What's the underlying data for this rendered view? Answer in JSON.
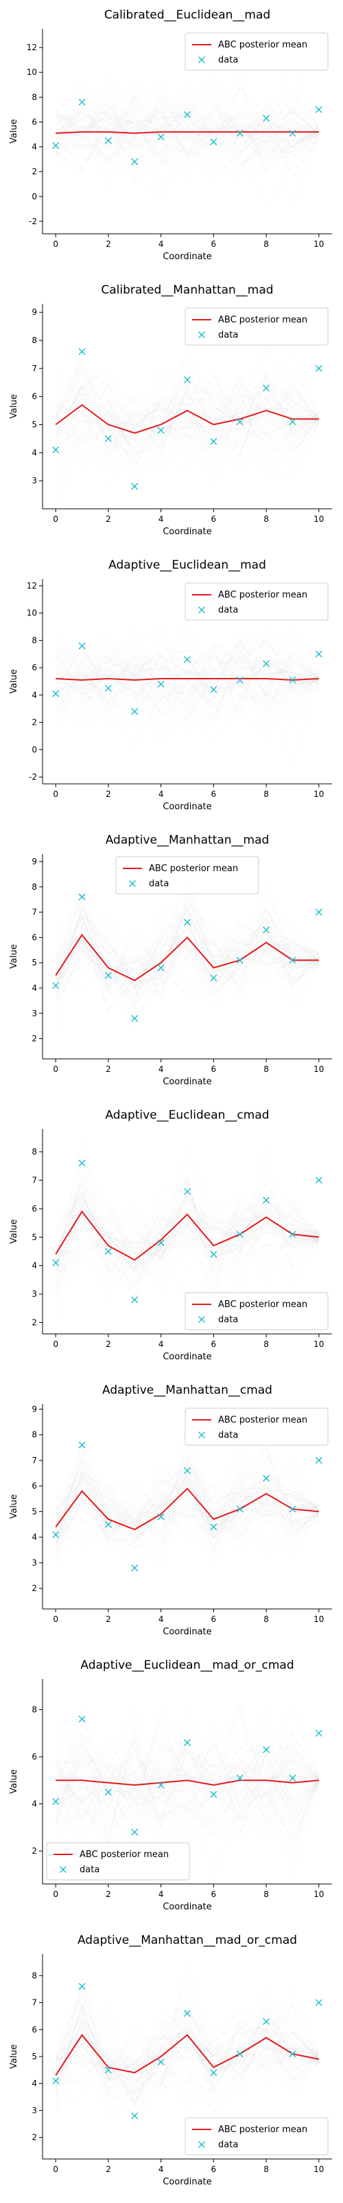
{
  "chart_data": [
    {
      "type": "line",
      "title": "Calibrated__Euclidean__mad",
      "xlabel": "Coordinate",
      "ylabel": "Value",
      "x": [
        0,
        1,
        2,
        3,
        4,
        5,
        6,
        7,
        8,
        9,
        10
      ],
      "xticks": [
        0,
        2,
        4,
        6,
        8,
        10
      ],
      "xlim": [
        -0.5,
        10.5
      ],
      "ylim": [
        -3,
        13.5
      ],
      "yticks": [
        -2,
        0,
        2,
        4,
        6,
        8,
        10,
        12
      ],
      "legend": "top-right",
      "colors": {
        "mean": "#e41a1c",
        "data": "#17becf",
        "samples": "#808080"
      },
      "series": [
        {
          "name": "ABC posterior mean",
          "values": [
            5.1,
            5.2,
            5.2,
            5.1,
            5.2,
            5.2,
            5.2,
            5.2,
            5.2,
            5.2,
            5.2
          ]
        },
        {
          "name": "data",
          "marker": "x",
          "values": [
            4.1,
            7.6,
            4.5,
            2.8,
            4.8,
            6.6,
            4.4,
            5.1,
            6.3,
            5.1,
            7.0
          ]
        }
      ],
      "samples_band": [
        2.2,
        2.2,
        2.2,
        2.2,
        2.2,
        2.2,
        2.2,
        2.2,
        2.2,
        2.2,
        0.4
      ]
    },
    {
      "type": "line",
      "title": "Calibrated__Manhattan__mad",
      "xlabel": "Coordinate",
      "ylabel": "Value",
      "x": [
        0,
        1,
        2,
        3,
        4,
        5,
        6,
        7,
        8,
        9,
        10
      ],
      "xticks": [
        0,
        2,
        4,
        6,
        8,
        10
      ],
      "xlim": [
        -0.5,
        10.5
      ],
      "ylim": [
        2.0,
        9.3
      ],
      "yticks": [
        3,
        4,
        5,
        6,
        7,
        8,
        9
      ],
      "legend": "top-right",
      "colors": {
        "mean": "#e41a1c",
        "data": "#17becf",
        "samples": "#808080"
      },
      "series": [
        {
          "name": "ABC posterior mean",
          "values": [
            5.0,
            5.7,
            5.0,
            4.7,
            5.0,
            5.5,
            5.0,
            5.2,
            5.5,
            5.2,
            5.2
          ]
        },
        {
          "name": "data",
          "marker": "x",
          "values": [
            4.1,
            7.6,
            4.5,
            2.8,
            4.8,
            6.6,
            4.4,
            5.1,
            6.3,
            5.1,
            7.0
          ]
        }
      ],
      "samples_band": [
        1.0,
        1.3,
        1.0,
        1.0,
        1.0,
        1.2,
        1.0,
        1.0,
        1.2,
        1.0,
        0.2
      ]
    },
    {
      "type": "line",
      "title": "Adaptive__Euclidean__mad",
      "xlabel": "Coordinate",
      "ylabel": "Value",
      "x": [
        0,
        1,
        2,
        3,
        4,
        5,
        6,
        7,
        8,
        9,
        10
      ],
      "xticks": [
        0,
        2,
        4,
        6,
        8,
        10
      ],
      "xlim": [
        -0.5,
        10.5
      ],
      "ylim": [
        -2.5,
        12.5
      ],
      "yticks": [
        -2,
        0,
        2,
        4,
        6,
        8,
        10,
        12
      ],
      "legend": "top-right",
      "colors": {
        "mean": "#e41a1c",
        "data": "#17becf",
        "samples": "#808080"
      },
      "series": [
        {
          "name": "ABC posterior mean",
          "values": [
            5.2,
            5.1,
            5.2,
            5.1,
            5.2,
            5.2,
            5.2,
            5.2,
            5.2,
            5.1,
            5.2
          ]
        },
        {
          "name": "data",
          "marker": "x",
          "values": [
            4.1,
            7.6,
            4.5,
            2.8,
            4.8,
            6.6,
            4.4,
            5.1,
            6.3,
            5.1,
            7.0
          ]
        }
      ],
      "samples_band": [
        2.0,
        2.0,
        2.0,
        2.0,
        2.0,
        2.0,
        2.0,
        2.0,
        2.0,
        2.0,
        0.4
      ]
    },
    {
      "type": "line",
      "title": "Adaptive__Manhattan__mad",
      "xlabel": "Coordinate",
      "ylabel": "Value",
      "x": [
        0,
        1,
        2,
        3,
        4,
        5,
        6,
        7,
        8,
        9,
        10
      ],
      "xticks": [
        0,
        2,
        4,
        6,
        8,
        10
      ],
      "xlim": [
        -0.5,
        10.5
      ],
      "ylim": [
        1.2,
        9.3
      ],
      "yticks": [
        2,
        3,
        4,
        5,
        6,
        7,
        8,
        9
      ],
      "legend": "top-center",
      "colors": {
        "mean": "#e41a1c",
        "data": "#17becf",
        "samples": "#808080"
      },
      "series": [
        {
          "name": "ABC posterior mean",
          "values": [
            4.5,
            6.1,
            4.8,
            4.3,
            5.0,
            6.0,
            4.8,
            5.1,
            5.8,
            5.1,
            5.1
          ]
        },
        {
          "name": "data",
          "marker": "x",
          "values": [
            4.1,
            7.6,
            4.5,
            2.8,
            4.8,
            6.6,
            4.4,
            5.1,
            6.3,
            5.1,
            7.0
          ]
        }
      ],
      "samples_band": [
        0.9,
        1.2,
        0.9,
        0.9,
        0.9,
        1.2,
        0.9,
        0.9,
        1.1,
        0.9,
        0.2
      ]
    },
    {
      "type": "line",
      "title": "Adaptive__Euclidean__cmad",
      "xlabel": "Coordinate",
      "ylabel": "Value",
      "x": [
        0,
        1,
        2,
        3,
        4,
        5,
        6,
        7,
        8,
        9,
        10
      ],
      "xticks": [
        0,
        2,
        4,
        6,
        8,
        10
      ],
      "xlim": [
        -0.5,
        10.5
      ],
      "ylim": [
        1.6,
        8.8
      ],
      "yticks": [
        2,
        3,
        4,
        5,
        6,
        7,
        8
      ],
      "legend": "bottom-right",
      "colors": {
        "mean": "#e41a1c",
        "data": "#17becf",
        "samples": "#808080"
      },
      "series": [
        {
          "name": "ABC posterior mean",
          "values": [
            4.4,
            5.9,
            4.7,
            4.2,
            4.9,
            5.8,
            4.7,
            5.1,
            5.7,
            5.1,
            5.0
          ]
        },
        {
          "name": "data",
          "marker": "x",
          "values": [
            4.1,
            7.6,
            4.5,
            2.8,
            4.8,
            6.6,
            4.4,
            5.1,
            6.3,
            5.1,
            7.0
          ]
        }
      ],
      "samples_band": [
        0.9,
        1.2,
        0.9,
        0.9,
        0.9,
        1.2,
        0.9,
        0.9,
        1.1,
        0.9,
        0.2
      ]
    },
    {
      "type": "line",
      "title": "Adaptive__Manhattan__cmad",
      "xlabel": "Coordinate",
      "ylabel": "Value",
      "x": [
        0,
        1,
        2,
        3,
        4,
        5,
        6,
        7,
        8,
        9,
        10
      ],
      "xticks": [
        0,
        2,
        4,
        6,
        8,
        10
      ],
      "xlim": [
        -0.5,
        10.5
      ],
      "ylim": [
        1.2,
        9.2
      ],
      "yticks": [
        2,
        3,
        4,
        5,
        6,
        7,
        8,
        9
      ],
      "legend": "top-right",
      "colors": {
        "mean": "#e41a1c",
        "data": "#17becf",
        "samples": "#808080"
      },
      "series": [
        {
          "name": "ABC posterior mean",
          "values": [
            4.4,
            5.8,
            4.7,
            4.3,
            4.9,
            5.9,
            4.7,
            5.1,
            5.7,
            5.1,
            5.0
          ]
        },
        {
          "name": "data",
          "marker": "x",
          "values": [
            4.1,
            7.6,
            4.5,
            2.8,
            4.8,
            6.6,
            4.4,
            5.1,
            6.3,
            5.1,
            7.0
          ]
        }
      ],
      "samples_band": [
        0.9,
        1.2,
        0.9,
        0.9,
        0.9,
        1.2,
        0.9,
        0.9,
        1.1,
        0.9,
        0.2
      ]
    },
    {
      "type": "line",
      "title": "Adaptive__Euclidean__mad_or_cmad",
      "xlabel": "Coordinate",
      "ylabel": "Value",
      "x": [
        0,
        1,
        2,
        3,
        4,
        5,
        6,
        7,
        8,
        9,
        10
      ],
      "xticks": [
        0,
        2,
        4,
        6,
        8,
        10
      ],
      "xlim": [
        -0.5,
        10.5
      ],
      "ylim": [
        0.6,
        9.3
      ],
      "yticks": [
        2,
        4,
        6,
        8
      ],
      "legend": "bottom-left",
      "colors": {
        "mean": "#e41a1c",
        "data": "#17becf",
        "samples": "#808080"
      },
      "series": [
        {
          "name": "ABC posterior mean",
          "values": [
            5.0,
            5.0,
            4.9,
            4.8,
            4.9,
            5.0,
            4.8,
            5.0,
            5.0,
            4.9,
            5.0
          ]
        },
        {
          "name": "data",
          "marker": "x",
          "values": [
            4.1,
            7.6,
            4.5,
            2.8,
            4.8,
            6.6,
            4.4,
            5.1,
            6.3,
            5.1,
            7.0
          ]
        }
      ],
      "samples_band": [
        1.6,
        1.6,
        1.6,
        1.6,
        1.6,
        1.6,
        1.6,
        1.6,
        1.6,
        1.6,
        0.3
      ]
    },
    {
      "type": "line",
      "title": "Adaptive__Manhattan__mad_or_cmad",
      "xlabel": "Coordinate",
      "ylabel": "Value",
      "x": [
        0,
        1,
        2,
        3,
        4,
        5,
        6,
        7,
        8,
        9,
        10
      ],
      "xticks": [
        0,
        2,
        4,
        6,
        8,
        10
      ],
      "xlim": [
        -0.5,
        10.5
      ],
      "ylim": [
        1.2,
        8.8
      ],
      "yticks": [
        2,
        3,
        4,
        5,
        6,
        7,
        8
      ],
      "legend": "bottom-right",
      "colors": {
        "mean": "#e41a1c",
        "data": "#17becf",
        "samples": "#808080"
      },
      "series": [
        {
          "name": "ABC posterior mean",
          "values": [
            4.3,
            5.8,
            4.6,
            4.4,
            5.0,
            5.8,
            4.6,
            5.1,
            5.7,
            5.1,
            4.9
          ]
        },
        {
          "name": "data",
          "marker": "x",
          "values": [
            4.1,
            7.6,
            4.5,
            2.8,
            4.8,
            6.6,
            4.4,
            5.1,
            6.3,
            5.1,
            7.0
          ]
        }
      ],
      "samples_band": [
        0.9,
        1.2,
        0.9,
        0.9,
        0.9,
        1.2,
        0.9,
        0.9,
        1.1,
        0.9,
        0.2
      ]
    }
  ]
}
